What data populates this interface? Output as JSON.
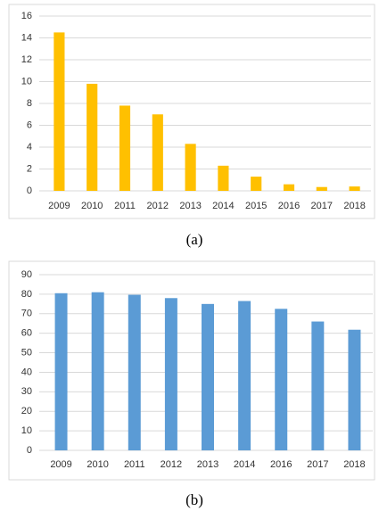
{
  "chart_data": [
    {
      "type": "bar",
      "caption": "(a)",
      "categories": [
        "2009",
        "2010",
        "2011",
        "2012",
        "2013",
        "2014",
        "2015",
        "2016",
        "2017",
        "2018"
      ],
      "values": [
        14.5,
        9.8,
        7.8,
        7.0,
        4.3,
        2.3,
        1.3,
        0.6,
        0.35,
        0.4
      ],
      "color": "#ffc000",
      "ylim": [
        0,
        16
      ],
      "yticks": [
        0,
        2,
        4,
        6,
        8,
        10,
        12,
        14,
        16
      ],
      "grid": true
    },
    {
      "type": "bar",
      "caption": "(b)",
      "categories": [
        "2009",
        "2010",
        "2011",
        "2012",
        "2013",
        "2014",
        "2016",
        "2017",
        "2018"
      ],
      "values": [
        80.5,
        81,
        79.7,
        78,
        75,
        76.5,
        72.5,
        66,
        61.8
      ],
      "color": "#5b9bd5",
      "ylim": [
        0,
        90
      ],
      "yticks": [
        0,
        10,
        20,
        30,
        40,
        50,
        60,
        70,
        80,
        90
      ],
      "grid": true
    }
  ]
}
